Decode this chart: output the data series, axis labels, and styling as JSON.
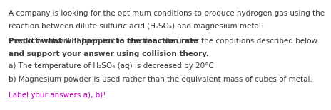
{
  "bg_color": "#ffffff",
  "line1": "A company is looking for the optimum conditions to produce hydrogen gas using the",
  "line2": "reaction between dilute sulfuric acid (H₂SO₄) and magnesium metal.",
  "line3_bold": "Predict what will happen to the reaction rate",
  "line3_normal": " under the conditions described below",
  "line4_underline": "and",
  "line4_rest": " support your answer using collision theory.",
  "line5": "a) The temperature of H₂SO₄ (aq) is decreased by 20°C",
  "line6": "b) Magnesium powder is used rather than the equivalent mass of cubes of metal.",
  "line7": "Label your answers a), b)!",
  "text_color": "#3a3a3a",
  "magenta_color": "#cc00cc",
  "font_size": 7.5
}
